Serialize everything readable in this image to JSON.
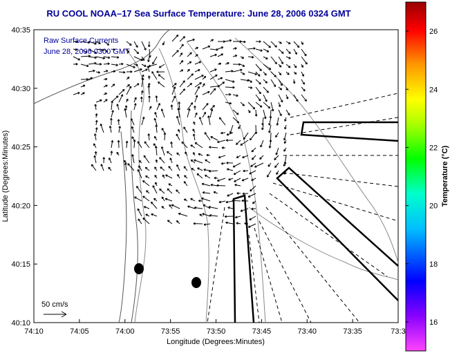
{
  "title": "RU COOL  NOAA–17  Sea Surface Temperature:  June 28, 2006 0324 GMT",
  "annotation_line1": "Raw Surface Currents",
  "annotation_line2": "June 28, 2006 0300 GMT",
  "scale_label": "50 cm/s",
  "xlabel": "Longitude (Degrees:Minutes)",
  "ylabel": "Latitude (Degrees:Minutes)",
  "colorbar_label": "Temperature (°C)",
  "x_ticks": [
    "74:10",
    "74:05",
    "74:00",
    "73:55",
    "73:50",
    "73:45",
    "73:40",
    "73:35",
    "73:3"
  ],
  "y_ticks": [
    "40:35",
    "40:30",
    "40:25",
    "40:20",
    "40:15",
    "40:10"
  ],
  "colorbar_ticks": [
    "26",
    "24",
    "22",
    "20",
    "18",
    "16"
  ],
  "colorbar_range": [
    15,
    27
  ],
  "colors": {
    "title": "#000099",
    "annotation": "#000099"
  },
  "markers": [
    {
      "name": "station-1",
      "lon": -73.9783,
      "lat": 40.2433
    },
    {
      "name": "station-2",
      "lon": -73.9042,
      "lat": 40.2283
    }
  ]
}
